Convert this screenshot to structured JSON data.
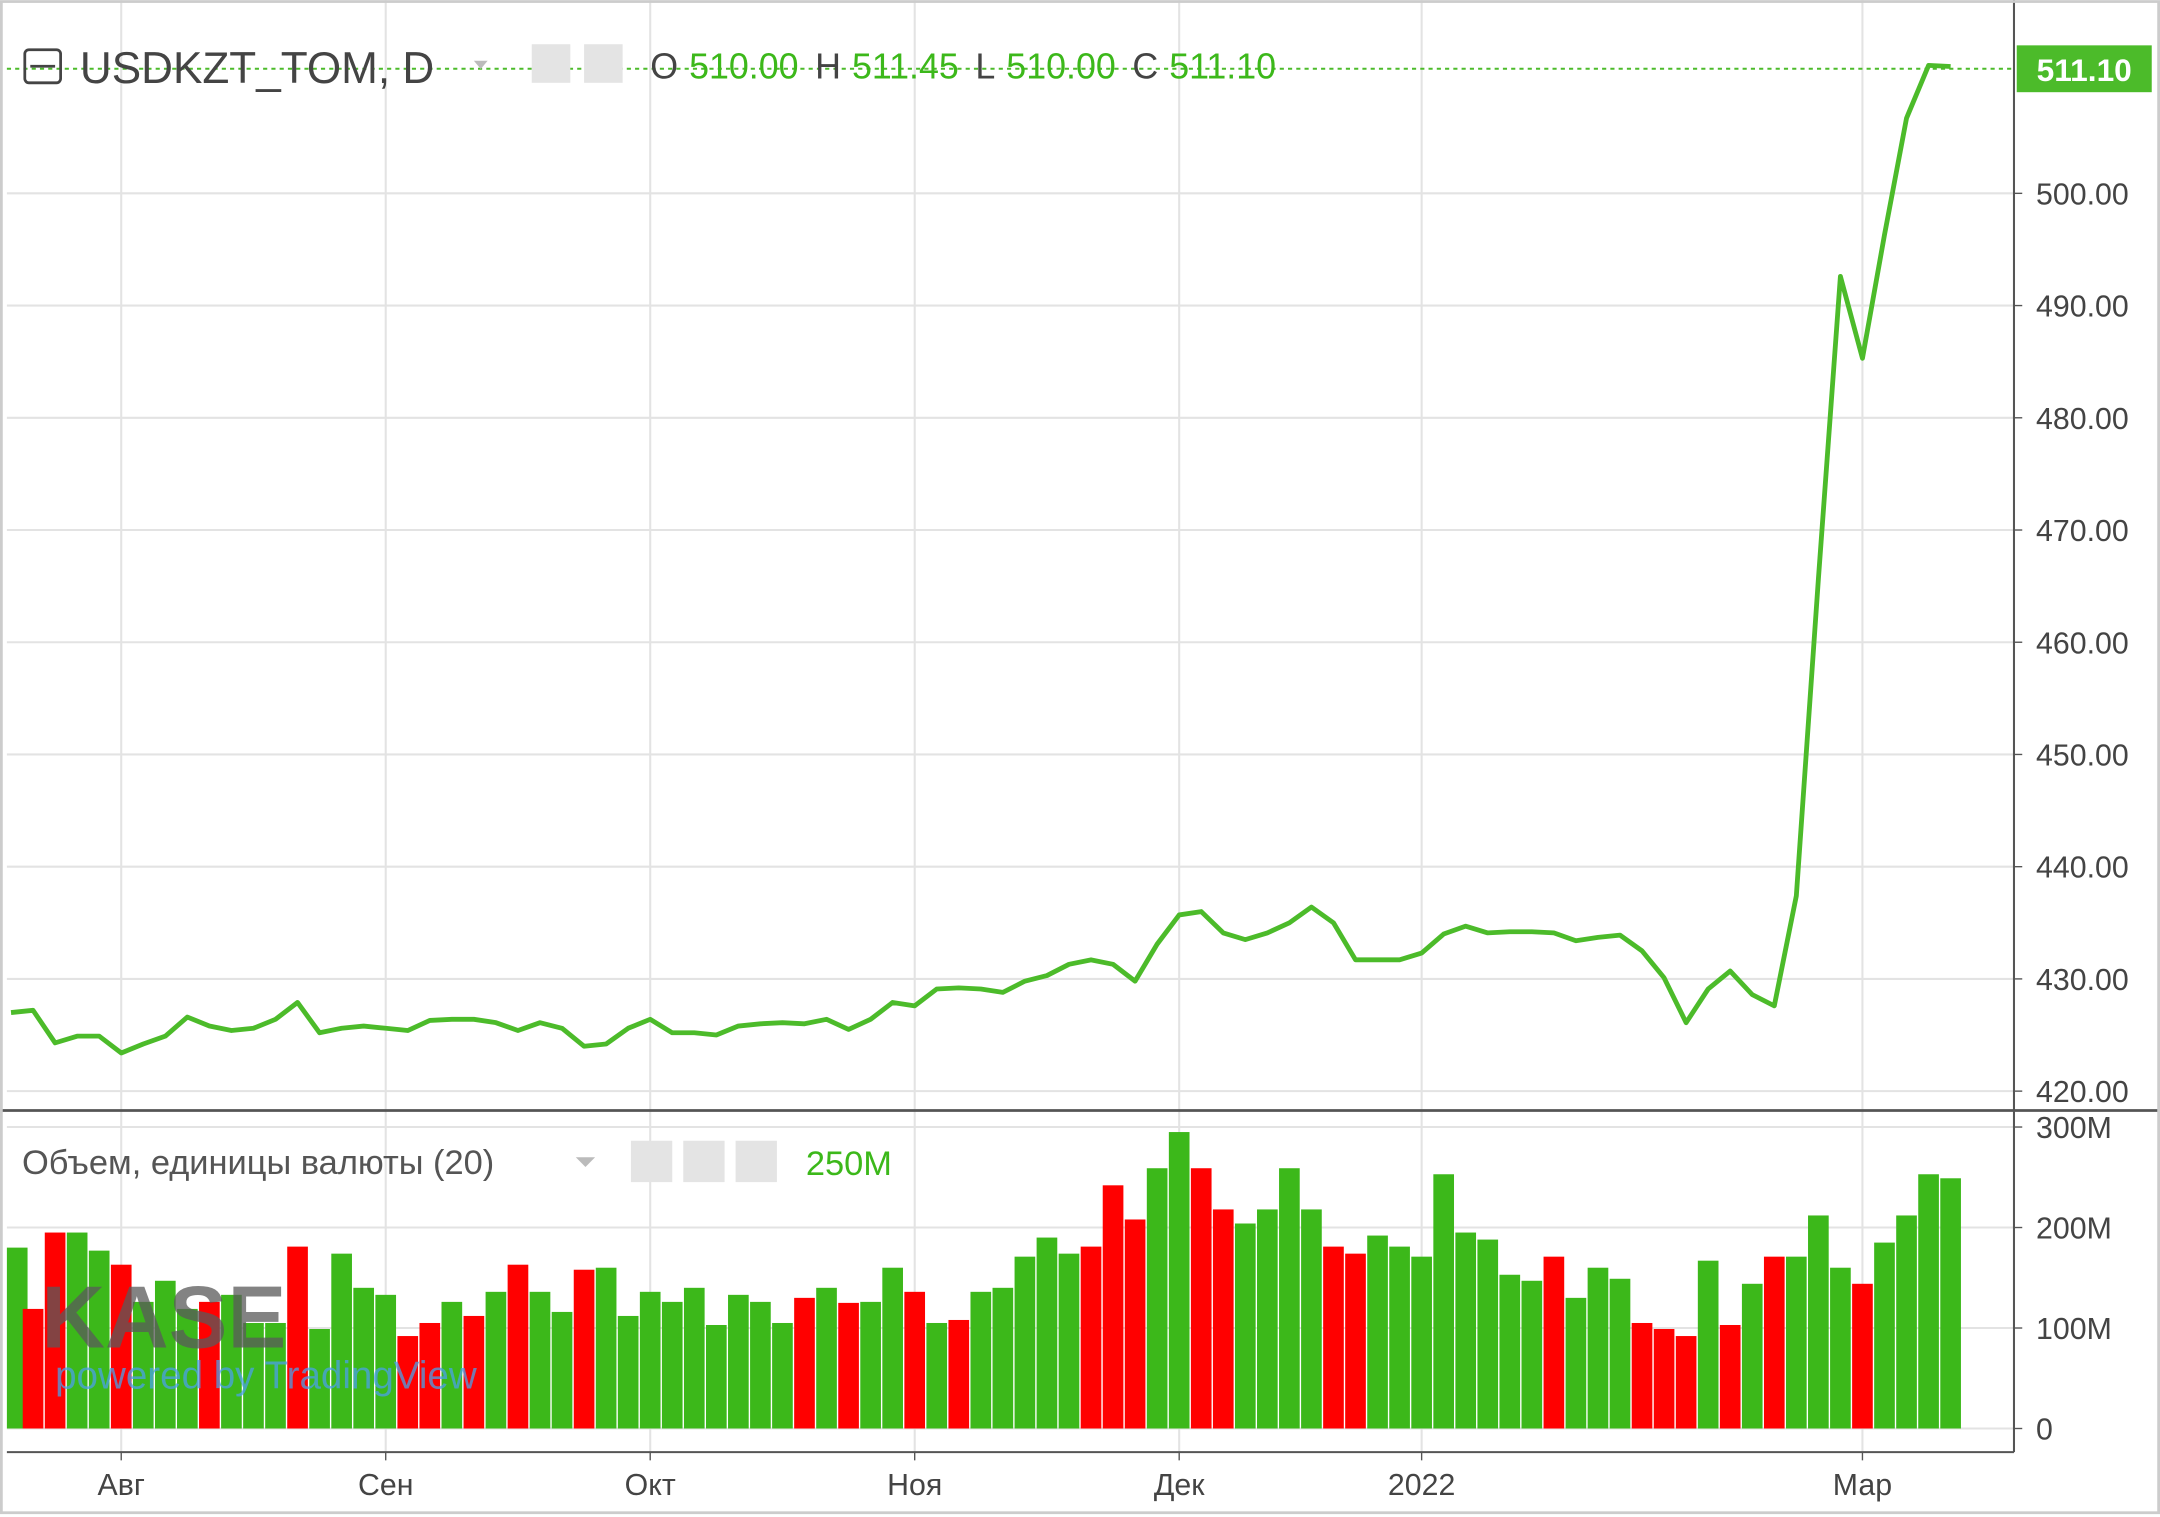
{
  "header": {
    "symbol": "USDKZT_TOM, D",
    "ohlc": [
      {
        "label": "O",
        "value": "510.00"
      },
      {
        "label": "H",
        "value": "511.45"
      },
      {
        "label": "L",
        "value": "510.00"
      },
      {
        "label": "C",
        "value": "511.10"
      }
    ]
  },
  "watermark": {
    "brand": "KASE",
    "credit": "powered by TradingView"
  },
  "chart_data": [
    {
      "type": "line",
      "color": "#4cbb2a",
      "categories": [
        null,
        null,
        null,
        null,
        null,
        "Авг",
        null,
        null,
        null,
        null,
        null,
        null,
        null,
        null,
        null,
        null,
        null,
        "Сен",
        null,
        null,
        null,
        null,
        null,
        null,
        null,
        null,
        null,
        null,
        null,
        "Окт",
        null,
        null,
        null,
        null,
        null,
        null,
        null,
        null,
        null,
        null,
        null,
        "Ноя",
        null,
        null,
        null,
        null,
        null,
        null,
        null,
        null,
        null,
        null,
        null,
        "Дек",
        null,
        null,
        null,
        null,
        null,
        null,
        null,
        null,
        null,
        null,
        "2022",
        null,
        null,
        null,
        null,
        null,
        null,
        null,
        null,
        null,
        null,
        null,
        null,
        null,
        null,
        null,
        null,
        null,
        null,
        null,
        "Мар",
        null,
        null,
        null,
        null
      ],
      "values": [
        427.0,
        427.2,
        424.3,
        424.9,
        424.9,
        423.4,
        424.2,
        424.9,
        426.6,
        425.8,
        425.4,
        425.6,
        426.4,
        427.9,
        425.2,
        425.6,
        425.8,
        425.6,
        425.4,
        426.3,
        426.4,
        426.4,
        426.1,
        425.4,
        426.1,
        425.6,
        424.0,
        424.2,
        425.6,
        426.4,
        425.2,
        425.2,
        425.0,
        425.8,
        426.0,
        426.1,
        426.0,
        426.4,
        425.5,
        426.4,
        427.9,
        427.6,
        429.1,
        429.2,
        429.1,
        428.8,
        429.8,
        430.3,
        431.3,
        431.7,
        431.3,
        429.8,
        433.1,
        435.7,
        436.0,
        434.1,
        433.5,
        434.1,
        435.0,
        436.4,
        435.0,
        431.7,
        431.7,
        431.7,
        432.3,
        434.0,
        434.7,
        434.1,
        434.2,
        434.2,
        434.1,
        433.4,
        433.7,
        433.9,
        432.5,
        430.1,
        426.1,
        429.1,
        430.7,
        428.6,
        427.6,
        437.4,
        465.6,
        492.6,
        485.3,
        496.3,
        506.7,
        511.4,
        511.3
      ],
      "last_value": {
        "value": 511.1,
        "label": "511.10"
      },
      "ylim": [
        418.4,
        516.6
      ],
      "yticks": [
        {
          "value": 420,
          "label": "420.00"
        },
        {
          "value": 430,
          "label": "430.00"
        },
        {
          "value": 440,
          "label": "440.00"
        },
        {
          "value": 450,
          "label": "450.00"
        },
        {
          "value": 460,
          "label": "460.00"
        },
        {
          "value": 470,
          "label": "470.00"
        },
        {
          "value": 480,
          "label": "480.00"
        },
        {
          "value": 490,
          "label": "490.00"
        },
        {
          "value": 500,
          "label": "500.00"
        }
      ],
      "grid": true
    },
    {
      "type": "bar",
      "title": "Объем, единицы валюты (20)",
      "legend_value": "250M",
      "values": [
        180,
        119,
        195,
        195,
        177,
        163,
        126,
        147,
        119,
        126,
        133,
        105,
        105,
        181,
        99,
        174,
        140,
        133,
        92,
        105,
        126,
        112,
        136,
        163,
        136,
        116,
        158,
        160,
        112,
        136,
        126,
        140,
        103,
        133,
        126,
        105,
        130,
        140,
        125,
        126,
        160,
        136,
        105,
        108,
        136,
        140,
        171,
        190,
        174,
        181,
        242,
        208,
        259,
        295,
        259,
        218,
        204,
        218,
        259,
        218,
        181,
        174,
        192,
        181,
        171,
        253,
        195,
        188,
        153,
        147,
        171,
        130,
        160,
        149,
        105,
        99,
        92,
        167,
        103,
        144,
        171,
        171,
        212,
        160,
        144,
        185,
        212,
        253,
        249
      ],
      "colors": [
        "#3cb81a",
        "#ff0000",
        "#ff0000",
        "#3cb81a",
        "#3cb81a",
        "#ff0000",
        "#3cb81a",
        "#3cb81a",
        "#3cb81a",
        "#ff0000",
        "#3cb81a",
        "#3cb81a",
        "#3cb81a",
        "#ff0000",
        "#3cb81a",
        "#3cb81a",
        "#3cb81a",
        "#3cb81a",
        "#ff0000",
        "#ff0000",
        "#3cb81a",
        "#ff0000",
        "#3cb81a",
        "#ff0000",
        "#3cb81a",
        "#3cb81a",
        "#ff0000",
        "#3cb81a",
        "#3cb81a",
        "#3cb81a",
        "#3cb81a",
        "#3cb81a",
        "#3cb81a",
        "#3cb81a",
        "#3cb81a",
        "#3cb81a",
        "#ff0000",
        "#3cb81a",
        "#ff0000",
        "#3cb81a",
        "#3cb81a",
        "#ff0000",
        "#3cb81a",
        "#ff0000",
        "#3cb81a",
        "#3cb81a",
        "#3cb81a",
        "#3cb81a",
        "#3cb81a",
        "#ff0000",
        "#ff0000",
        "#ff0000",
        "#3cb81a",
        "#3cb81a",
        "#ff0000",
        "#ff0000",
        "#3cb81a",
        "#3cb81a",
        "#3cb81a",
        "#3cb81a",
        "#ff0000",
        "#ff0000",
        "#3cb81a",
        "#3cb81a",
        "#3cb81a",
        "#3cb81a",
        "#3cb81a",
        "#3cb81a",
        "#3cb81a",
        "#3cb81a",
        "#ff0000",
        "#3cb81a",
        "#3cb81a",
        "#3cb81a",
        "#ff0000",
        "#ff0000",
        "#ff0000",
        "#3cb81a",
        "#ff0000",
        "#3cb81a",
        "#ff0000",
        "#3cb81a",
        "#3cb81a",
        "#3cb81a",
        "#ff0000",
        "#3cb81a",
        "#3cb81a",
        "#3cb81a",
        "#3cb81a"
      ],
      "ylim": [
        -18,
        311
      ],
      "yticks": [
        0,
        {
          "value": 100,
          "label": "100M"
        },
        {
          "value": 200,
          "label": "200M"
        },
        {
          "value": 300,
          "label": "300M"
        }
      ],
      "grid": true
    }
  ]
}
